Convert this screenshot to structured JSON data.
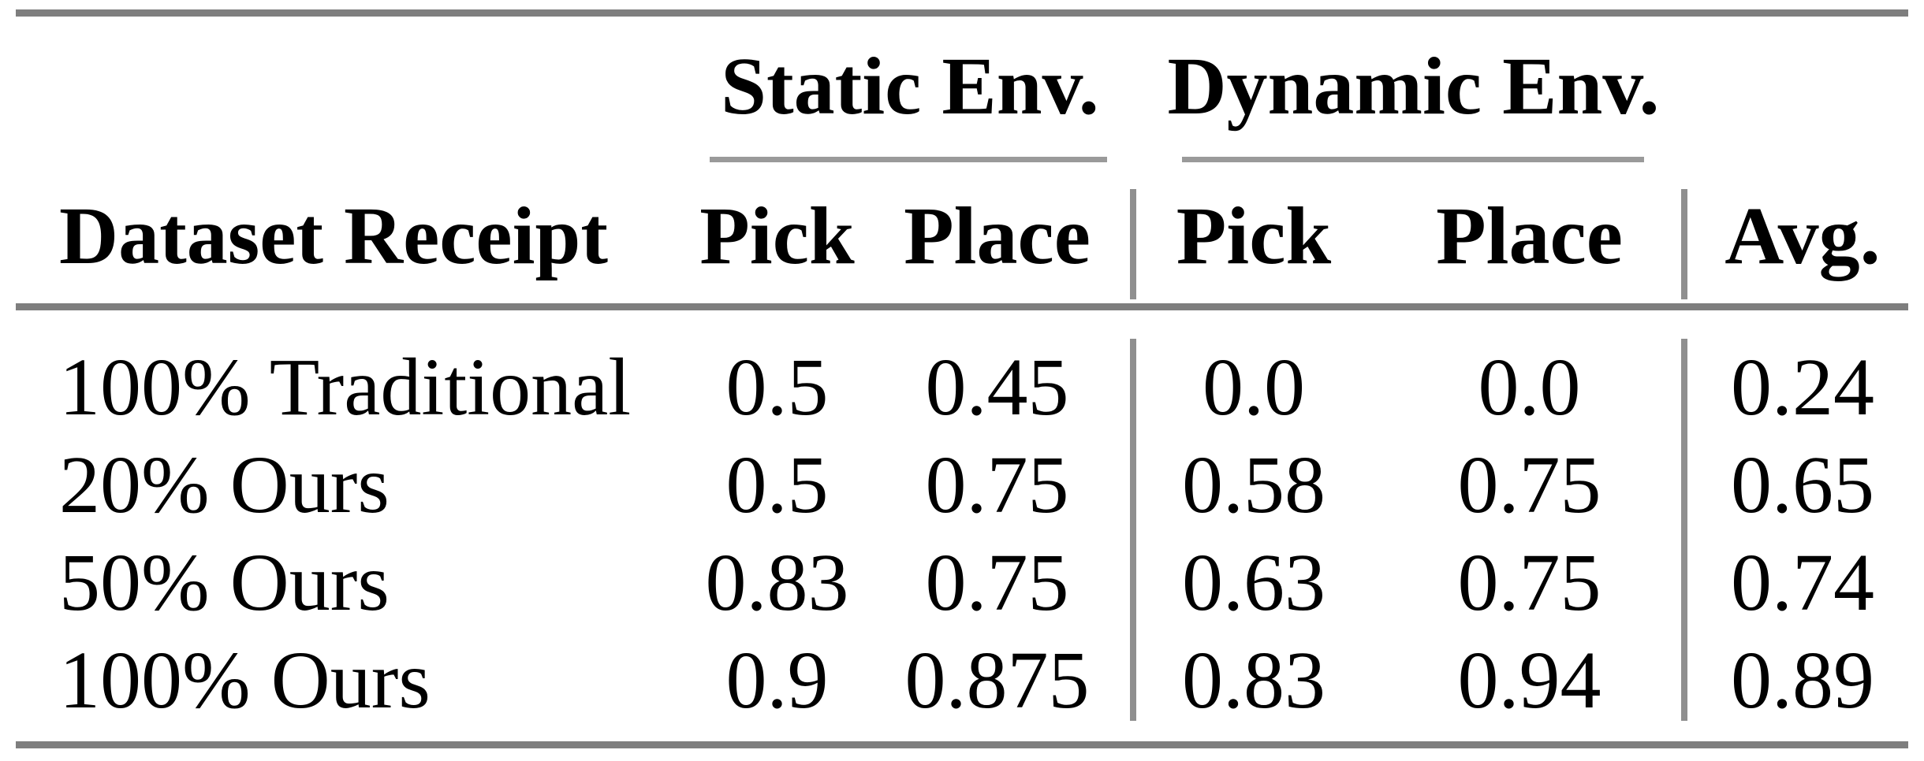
{
  "table": {
    "groups": {
      "static": "Static Env.",
      "dynamic": "Dynamic Env."
    },
    "headers": {
      "dataset": "Dataset Receipt",
      "static_pick": "Pick",
      "static_place": "Place",
      "dynamic_pick": "Pick",
      "dynamic_place": "Place",
      "avg": "Avg."
    },
    "rows": [
      {
        "dataset": "100% Traditional",
        "static_pick": "0.5",
        "static_place": "0.45",
        "dynamic_pick": "0.0",
        "dynamic_place": "0.0",
        "avg": "0.24"
      },
      {
        "dataset": "20% Ours",
        "static_pick": "0.5",
        "static_place": "0.75",
        "dynamic_pick": "0.58",
        "dynamic_place": "0.75",
        "avg": "0.65"
      },
      {
        "dataset": "50% Ours",
        "static_pick": "0.83",
        "static_place": "0.75",
        "dynamic_pick": "0.63",
        "dynamic_place": "0.75",
        "avg": "0.74"
      },
      {
        "dataset": "100% Ours",
        "static_pick": "0.9",
        "static_place": "0.875",
        "dynamic_pick": "0.83",
        "dynamic_place": "0.94",
        "avg": "0.89"
      }
    ],
    "colors": {
      "rule_thick": "#7e7e7e",
      "rule_thin": "#9a9a9a",
      "text": "#000000",
      "background": "#ffffff"
    }
  },
  "chart_data": {
    "type": "table",
    "columns": [
      "Dataset Receipt",
      "Static Env. Pick",
      "Static Env. Place",
      "Dynamic Env. Pick",
      "Dynamic Env. Place",
      "Avg."
    ],
    "rows": [
      [
        "100% Traditional",
        0.5,
        0.45,
        0.0,
        0.0,
        0.24
      ],
      [
        "20% Ours",
        0.5,
        0.75,
        0.58,
        0.75,
        0.65
      ],
      [
        "50% Ours",
        0.83,
        0.75,
        0.63,
        0.75,
        0.74
      ],
      [
        "100% Ours",
        0.9,
        0.875,
        0.83,
        0.94,
        0.89
      ]
    ]
  }
}
